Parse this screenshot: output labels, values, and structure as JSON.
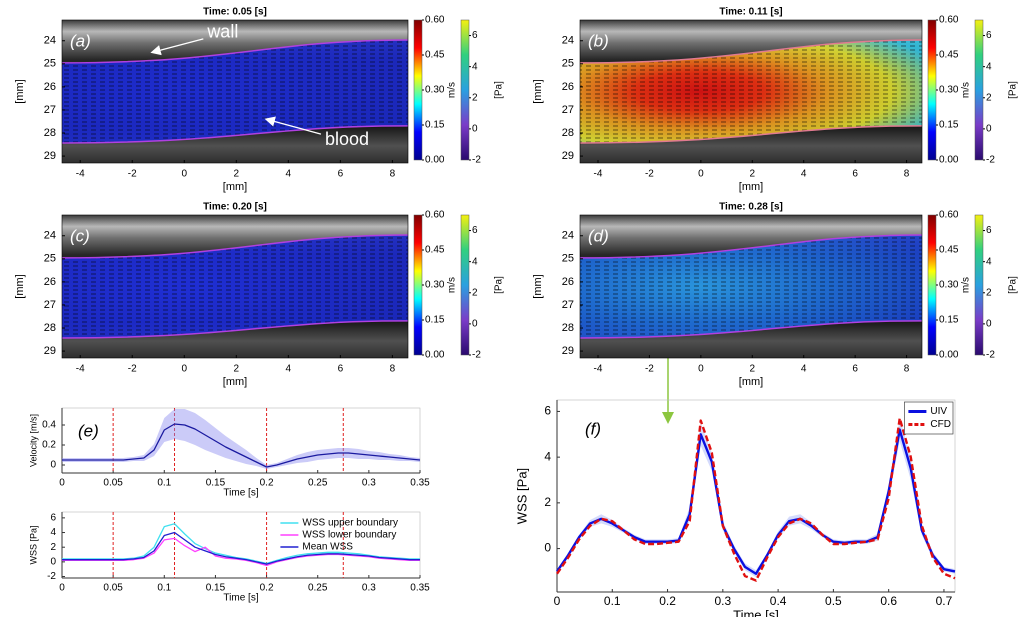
{
  "chart_data": [
    {
      "type": "vector_field",
      "label": "(a)",
      "title": "Time: 0.05 [s]",
      "xlabel": "[mm]",
      "ylabel": "[mm]",
      "xlim": [
        -4.7,
        8.6
      ],
      "xticks": [
        -4,
        -2,
        0,
        2,
        4,
        6,
        8
      ],
      "ylim": [
        23.1,
        29.3
      ],
      "yticks": [
        24,
        25,
        26,
        27,
        28,
        29
      ],
      "y_inverted": true,
      "flow_colors": [
        "#1d2de0",
        "#1a28c8"
      ],
      "wall_color": "#b040e0",
      "annotations": [
        "wall",
        "blood"
      ],
      "colorbars": [
        {
          "label": "m/s",
          "lim": [
            0,
            0.6
          ],
          "ticks": [
            {
              "value": 0,
              "label": "0.00"
            },
            0.15,
            {
              "value": 0.3,
              "label": "0.30"
            },
            0.45,
            {
              "value": 0.6,
              "label": "0.60"
            }
          ],
          "colors": [
            "#00008f",
            "#0000ff",
            "#00ffff",
            "#ffff00",
            "#ff0000",
            "#800000"
          ]
        },
        {
          "label": "[Pa]",
          "lim": [
            -2,
            7
          ],
          "ticks": [
            -2,
            0,
            2,
            4,
            6
          ],
          "colors": [
            "#2a0a6e",
            "#7a3cc8",
            "#2aa0e0",
            "#30d080",
            "#f5f010"
          ]
        }
      ]
    },
    {
      "type": "vector_field",
      "label": "(b)",
      "title": "Time: 0.11 [s]",
      "xlabel": "[mm]",
      "ylabel": "[mm]",
      "xlim": [
        -4.7,
        8.6
      ],
      "xticks": [
        -4,
        -2,
        0,
        2,
        4,
        6,
        8
      ],
      "ylim": [
        23.1,
        29.3
      ],
      "yticks": [
        24,
        25,
        26,
        27,
        28,
        29
      ],
      "y_inverted": true,
      "flow_colors": [
        "#e01010",
        "#f03010",
        "#f0a020",
        "#e0e030",
        "#30c0e0"
      ],
      "wall_color": "#e07a90",
      "colorbars": [
        {
          "label": "m/s",
          "lim": [
            0,
            0.6
          ],
          "ticks": [
            {
              "value": 0,
              "label": "0.00"
            },
            0.15,
            {
              "value": 0.3,
              "label": "0.30"
            },
            0.45,
            {
              "value": 0.6,
              "label": "0.60"
            }
          ],
          "colors": [
            "#00008f",
            "#0000ff",
            "#00ffff",
            "#ffff00",
            "#ff0000",
            "#800000"
          ]
        },
        {
          "label": "[Pa]",
          "lim": [
            -2,
            7
          ],
          "ticks": [
            -2,
            0,
            2,
            4,
            6
          ],
          "colors": [
            "#2a0a6e",
            "#7a3cc8",
            "#2aa0e0",
            "#30d080",
            "#f5f010"
          ]
        }
      ]
    },
    {
      "type": "vector_field",
      "label": "(c)",
      "title": "Time: 0.20 [s]",
      "xlabel": "[mm]",
      "ylabel": "[mm]",
      "xlim": [
        -4.7,
        8.6
      ],
      "xticks": [
        -4,
        -2,
        0,
        2,
        4,
        6,
        8
      ],
      "ylim": [
        23.1,
        29.3
      ],
      "yticks": [
        24,
        25,
        26,
        27,
        28,
        29
      ],
      "y_inverted": true,
      "flow_colors": [
        "#1f30e8",
        "#1a28c8"
      ],
      "wall_color": "#b040e0",
      "colorbars": [
        {
          "label": "m/s",
          "lim": [
            0,
            0.6
          ],
          "ticks": [
            {
              "value": 0,
              "label": "0.00"
            },
            0.15,
            {
              "value": 0.3,
              "label": "0.30"
            },
            0.45,
            {
              "value": 0.6,
              "label": "0.60"
            }
          ],
          "colors": [
            "#00008f",
            "#0000ff",
            "#00ffff",
            "#ffff00",
            "#ff0000",
            "#800000"
          ]
        },
        {
          "label": "[Pa]",
          "lim": [
            -2,
            7
          ],
          "ticks": [
            -2,
            0,
            2,
            4,
            6
          ],
          "colors": [
            "#2a0a6e",
            "#7a3cc8",
            "#2aa0e0",
            "#30d080",
            "#f5f010"
          ]
        }
      ]
    },
    {
      "type": "vector_field",
      "label": "(d)",
      "title": "Time: 0.28 [s]",
      "xlabel": "[mm]",
      "ylabel": "[mm]",
      "xlim": [
        -4.7,
        8.6
      ],
      "xticks": [
        -4,
        -2,
        0,
        2,
        4,
        6,
        8
      ],
      "ylim": [
        23.1,
        29.3
      ],
      "yticks": [
        24,
        25,
        26,
        27,
        28,
        29
      ],
      "y_inverted": true,
      "flow_colors": [
        "#2aa0f0",
        "#1e70e0",
        "#1a40d0"
      ],
      "wall_color": "#b040e0",
      "colorbars": [
        {
          "label": "m/s",
          "lim": [
            0,
            0.6
          ],
          "ticks": [
            {
              "value": 0,
              "label": "0.00"
            },
            0.15,
            {
              "value": 0.3,
              "label": "0.30"
            },
            0.45,
            {
              "value": 0.6,
              "label": "0.60"
            }
          ],
          "colors": [
            "#00008f",
            "#0000ff",
            "#00ffff",
            "#ffff00",
            "#ff0000",
            "#800000"
          ]
        },
        {
          "label": "[Pa]",
          "lim": [
            -2,
            7
          ],
          "ticks": [
            -2,
            0,
            2,
            4,
            6
          ],
          "colors": [
            "#2a0a6e",
            "#7a3cc8",
            "#2aa0e0",
            "#30d080",
            "#f5f010"
          ]
        }
      ]
    },
    {
      "type": "line",
      "label": "(e)",
      "xlabel": "Time [s]",
      "ylabel": "Velocity [m/s]",
      "x": [
        0,
        0.01,
        0.02,
        0.03,
        0.04,
        0.05,
        0.06,
        0.07,
        0.08,
        0.09,
        0.1,
        0.11,
        0.12,
        0.13,
        0.14,
        0.15,
        0.16,
        0.17,
        0.18,
        0.19,
        0.2,
        0.21,
        0.22,
        0.23,
        0.24,
        0.25,
        0.26,
        0.27,
        0.28,
        0.29,
        0.3,
        0.31,
        0.32,
        0.33,
        0.34,
        0.35
      ],
      "xlim": [
        0,
        0.35
      ],
      "xticks": [
        0,
        0.05,
        0.1,
        0.15,
        0.2,
        0.25,
        0.3,
        0.35
      ],
      "ylim": [
        -0.08,
        0.57
      ],
      "yticks": [
        0,
        0.2,
        0.4
      ],
      "vlines": [
        0.05,
        0.11,
        0.2,
        0.275
      ],
      "vline_color": "#e02020",
      "series": [
        {
          "color": "#1a1aa0",
          "band_color": "#8c8cf0",
          "values": [
            0.05,
            0.05,
            0.05,
            0.05,
            0.05,
            0.05,
            0.05,
            0.06,
            0.07,
            0.15,
            0.35,
            0.41,
            0.4,
            0.36,
            0.3,
            0.24,
            0.18,
            0.13,
            0.08,
            0.03,
            -0.02,
            0,
            0.03,
            0.06,
            0.08,
            0.1,
            0.11,
            0.12,
            0.12,
            0.11,
            0.1,
            0.09,
            0.08,
            0.07,
            0.06,
            0.05
          ],
          "errors": [
            0.02,
            0.02,
            0.02,
            0.02,
            0.02,
            0.02,
            0.02,
            0.02,
            0.03,
            0.06,
            0.12,
            0.15,
            0.16,
            0.16,
            0.15,
            0.13,
            0.11,
            0.09,
            0.07,
            0.04,
            0.02,
            0.02,
            0.03,
            0.04,
            0.05,
            0.05,
            0.05,
            0.05,
            0.05,
            0.05,
            0.04,
            0.04,
            0.03,
            0.03,
            0.02,
            0.02
          ]
        }
      ]
    },
    {
      "type": "line",
      "xlabel": "Time [s]",
      "ylabel": "WSS [Pa]",
      "x": [
        0,
        0.01,
        0.02,
        0.03,
        0.04,
        0.05,
        0.06,
        0.07,
        0.08,
        0.09,
        0.1,
        0.11,
        0.12,
        0.13,
        0.14,
        0.15,
        0.16,
        0.17,
        0.18,
        0.19,
        0.2,
        0.21,
        0.22,
        0.23,
        0.24,
        0.25,
        0.26,
        0.27,
        0.28,
        0.29,
        0.3,
        0.31,
        0.32,
        0.33,
        0.34,
        0.35
      ],
      "xlim": [
        0,
        0.35
      ],
      "xticks": [
        0,
        0.05,
        0.1,
        0.15,
        0.2,
        0.25,
        0.3,
        0.35
      ],
      "ylim": [
        -2.2,
        6.8
      ],
      "yticks": [
        -2,
        0,
        2,
        4,
        6
      ],
      "vlines": [
        0.05,
        0.11,
        0.2,
        0.275
      ],
      "vline_color": "#e02020",
      "legend": "upper right",
      "series": [
        {
          "name": "WSS upper boundary",
          "color": "#40e0f0",
          "values": [
            0.4,
            0.4,
            0.4,
            0.4,
            0.4,
            0.4,
            0.4,
            0.5,
            0.8,
            2.0,
            4.8,
            5.2,
            3.8,
            2.5,
            1.8,
            1.2,
            0.9,
            0.6,
            0.4,
            0.1,
            -0.2,
            0.2,
            0.6,
            0.9,
            1.1,
            1.2,
            1.3,
            1.3,
            1.2,
            1.1,
            0.9,
            0.7,
            0.6,
            0.5,
            0.4,
            0.4
          ]
        },
        {
          "name": "WSS lower boundary",
          "color": "#ff40ff",
          "values": [
            0.2,
            0.2,
            0.2,
            0.2,
            0.2,
            0.2,
            0.2,
            0.3,
            0.5,
            1.2,
            3.0,
            3.2,
            2.2,
            1.4,
            2.0,
            0.8,
            0.5,
            0.4,
            0.2,
            -0.1,
            -0.5,
            0,
            0.3,
            0.6,
            0.8,
            0.9,
            1.0,
            1.0,
            0.9,
            0.8,
            0.7,
            0.5,
            0.4,
            0.3,
            0.2,
            0.2
          ]
        },
        {
          "name": "Mean WSS",
          "color": "#2020d0",
          "values": [
            0.3,
            0.3,
            0.3,
            0.3,
            0.3,
            0.3,
            0.3,
            0.4,
            0.6,
            1.5,
            3.6,
            4.0,
            3.0,
            2.0,
            1.5,
            1.0,
            0.7,
            0.5,
            0.3,
            0,
            -0.3,
            0.1,
            0.4,
            0.7,
            0.9,
            1.0,
            1.1,
            1.1,
            1.0,
            0.9,
            0.8,
            0.6,
            0.5,
            0.4,
            0.3,
            0.3
          ]
        }
      ]
    },
    {
      "type": "line",
      "label": "(f)",
      "xlabel": "Time [s]",
      "ylabel": "WSS [Pa]",
      "x": [
        0,
        0.02,
        0.04,
        0.06,
        0.08,
        0.1,
        0.12,
        0.14,
        0.16,
        0.18,
        0.2,
        0.22,
        0.24,
        0.26,
        0.28,
        0.3,
        0.32,
        0.34,
        0.36,
        0.38,
        0.4,
        0.42,
        0.44,
        0.46,
        0.48,
        0.5,
        0.52,
        0.54,
        0.56,
        0.58,
        0.6,
        0.62,
        0.64,
        0.66,
        0.68,
        0.7,
        0.72
      ],
      "xlim": [
        0,
        0.72
      ],
      "xticks": [
        0,
        0.1,
        0.2,
        0.3,
        0.4,
        0.5,
        0.6,
        0.7
      ],
      "ylim": [
        -1.9,
        6.5
      ],
      "yticks": [
        0,
        2,
        4,
        6
      ],
      "legend": "upper right",
      "legend_frame": true,
      "series": [
        {
          "name": "UIV",
          "color": "#0a10e0",
          "band_color": "#a0b0f8",
          "values": [
            -1.0,
            -0.3,
            0.5,
            1.1,
            1.3,
            1.1,
            0.8,
            0.5,
            0.3,
            0.3,
            0.3,
            0.35,
            1.5,
            5.0,
            3.8,
            1.0,
            0,
            -0.8,
            -1.1,
            -0.3,
            0.6,
            1.2,
            1.3,
            1.0,
            0.6,
            0.3,
            0.25,
            0.3,
            0.3,
            0.5,
            2.5,
            5.2,
            3.5,
            0.8,
            -0.3,
            -0.9,
            -1.0
          ],
          "errors": [
            0.1,
            0.1,
            0.1,
            0.15,
            0.2,
            0.15,
            0.1,
            0.1,
            0.1,
            0.1,
            0.1,
            0.1,
            0.3,
            0.5,
            0.4,
            0.2,
            0.15,
            0.15,
            0.15,
            0.1,
            0.15,
            0.2,
            0.2,
            0.15,
            0.1,
            0.1,
            0.1,
            0.1,
            0.1,
            0.15,
            0.3,
            0.5,
            0.5,
            0.2,
            0.15,
            0.1,
            0.1
          ]
        },
        {
          "name": "CFD",
          "color": "#e01010",
          "dash": true,
          "values": [
            -1.1,
            -0.4,
            0.4,
            1.0,
            1.3,
            1.2,
            0.8,
            0.4,
            0.2,
            0.2,
            0.25,
            0.3,
            1.2,
            5.6,
            4.2,
            1.0,
            -0.2,
            -1.2,
            -1.4,
            -0.4,
            0.5,
            1.1,
            1.3,
            1.1,
            0.6,
            0.2,
            0.2,
            0.25,
            0.3,
            0.4,
            2.2,
            5.7,
            4.0,
            1.0,
            -0.4,
            -1.1,
            -1.3
          ]
        }
      ]
    }
  ]
}
